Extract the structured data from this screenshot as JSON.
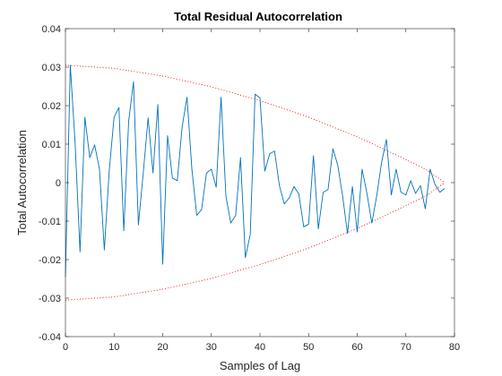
{
  "chart_data": {
    "type": "line",
    "title": "Total Residual Autocorrelation",
    "xlabel": "Samples of Lag",
    "ylabel": "Total Autocorrelation",
    "xlim": [
      0,
      80
    ],
    "ylim": [
      -0.04,
      0.04
    ],
    "xticks": [
      0,
      10,
      20,
      30,
      40,
      50,
      60,
      70,
      80
    ],
    "yticks": [
      -0.04,
      -0.03,
      -0.02,
      -0.01,
      0,
      0.01,
      0.02,
      0.03,
      0.04
    ],
    "xtick_labels": [
      "0",
      "10",
      "20",
      "30",
      "40",
      "50",
      "60",
      "70",
      "80"
    ],
    "ytick_labels": [
      "-0.04",
      "-0.03",
      "-0.02",
      "-0.01",
      "0",
      "0.01",
      "0.02",
      "0.03",
      "0.04"
    ],
    "grid": false,
    "series": [
      {
        "style": "solid",
        "color": "#0072bd",
        "x": [
          0,
          1,
          2,
          3,
          4,
          5,
          6,
          7,
          8,
          9,
          10,
          11,
          12,
          13,
          14,
          15,
          16,
          17,
          18,
          19,
          20,
          21,
          22,
          23,
          24,
          25,
          26,
          27,
          28,
          29,
          30,
          31,
          32,
          33,
          34,
          35,
          36,
          37,
          38,
          39,
          40,
          41,
          42,
          43,
          44,
          45,
          46,
          47,
          48,
          49,
          50,
          51,
          52,
          53,
          54,
          55,
          56,
          57,
          58,
          59,
          60,
          61,
          62,
          63,
          64,
          65,
          66,
          67,
          68,
          69,
          70,
          71,
          72,
          73,
          74,
          75,
          76,
          77,
          78
        ],
        "y": [
          -0.0245,
          0.0305,
          0.01,
          -0.018,
          0.017,
          0.0065,
          0.0098,
          0.0035,
          -0.0175,
          0.003,
          0.017,
          0.0195,
          -0.0125,
          0.016,
          0.0262,
          -0.011,
          0.0025,
          0.0168,
          0.0025,
          0.0203,
          -0.0212,
          0.0122,
          0.0012,
          0.0005,
          0.0145,
          0.0222,
          0.0035,
          -0.0085,
          -0.007,
          0.0025,
          0.0035,
          -0.0012,
          0.0222,
          -0.0035,
          -0.0105,
          -0.0085,
          0.0065,
          -0.0195,
          -0.0135,
          0.023,
          0.022,
          0.003,
          0.0075,
          0.0082,
          -0.0008,
          -0.0055,
          -0.004,
          -0.001,
          -0.003,
          -0.0115,
          -0.0108,
          0.007,
          -0.012,
          -0.0025,
          -0.0018,
          0.0088,
          0.0045,
          -0.0035,
          -0.0132,
          -0.001,
          -0.0128,
          0.0035,
          -0.0028,
          -0.0105,
          -0.0035,
          0.0052,
          0.0112,
          -0.0032,
          0.0035,
          -0.0025,
          -0.0032,
          0.0005,
          -0.0028,
          -0.0008,
          -0.0068,
          0.0035,
          -0.0005,
          -0.0025,
          -0.0015
        ]
      },
      {
        "style": "dotted",
        "color": "#ff0000",
        "x": [
          0,
          10,
          20,
          30,
          40,
          50,
          60,
          65,
          70,
          74,
          76,
          78
        ],
        "y": [
          0.0305,
          0.0297,
          0.0277,
          0.0249,
          0.0213,
          0.017,
          0.0119,
          0.009,
          0.006,
          0.0035,
          0.0018,
          0.0
        ]
      },
      {
        "style": "dotted",
        "color": "#ff0000",
        "x": [
          0,
          10,
          20,
          30,
          40,
          50,
          60,
          65,
          70,
          74,
          76,
          78
        ],
        "y": [
          -0.0305,
          -0.0297,
          -0.0277,
          -0.0249,
          -0.0213,
          -0.017,
          -0.0119,
          -0.009,
          -0.006,
          -0.0035,
          -0.0018,
          0.0
        ]
      }
    ],
    "colors": {
      "series": "#0072bd",
      "bounds": "#ff0000",
      "axes": "#262626"
    }
  }
}
